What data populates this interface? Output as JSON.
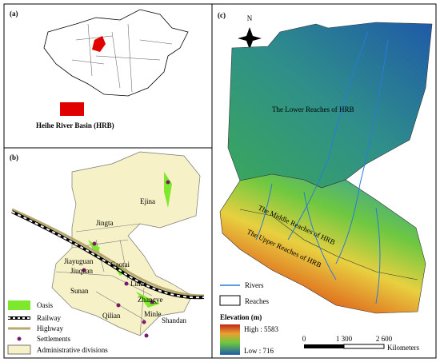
{
  "panel_a": {
    "label": "(a)",
    "caption": "Heihe River Basin (HRB)"
  },
  "panel_b": {
    "label": "(b)",
    "places": [
      "Ejina",
      "Jingta",
      "Jiayuguan",
      "Jiuquan",
      "Gaotai",
      "Linze",
      "Sunan",
      "Zhangye",
      "Qilian",
      "Minle",
      "Shandan"
    ],
    "legend": [
      "Oasis",
      "Railway",
      "Highway",
      "Settlements",
      "Administrative divisions"
    ]
  },
  "panel_c": {
    "label": "(c)",
    "north": "N",
    "reaches": [
      "The Lower Reaches of HRB",
      "The Middle Reaches of HRB",
      "The Upper Reaches of HRB"
    ],
    "legend": [
      "Rivers",
      "Reaches"
    ],
    "elevation_title": "Elevation (m)",
    "elevation_high": "High : 5583",
    "elevation_low": "Low : 716",
    "scale": [
      "0",
      "1 300",
      "2 600"
    ],
    "scale_unit": "Kilometers"
  }
}
